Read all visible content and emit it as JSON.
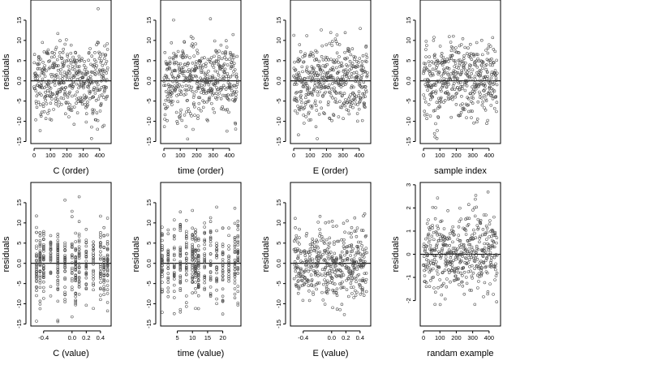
{
  "figure": {
    "panels": [
      {
        "xlabel": "C (order)",
        "ylabel": "residuals"
      },
      {
        "xlabel": "time (order)",
        "ylabel": "residuals"
      },
      {
        "xlabel": "E (order)",
        "ylabel": "residuals"
      },
      {
        "xlabel": "sample index",
        "ylabel": "residuals"
      },
      {
        "xlabel": "C (value)",
        "ylabel": "residuals"
      },
      {
        "xlabel": "time (value)",
        "ylabel": "residuals"
      },
      {
        "xlabel": "E (value)",
        "ylabel": "residuals"
      },
      {
        "xlabel": "randam example",
        "ylabel": "residuals"
      }
    ]
  },
  "chart_data": [
    {
      "type": "scatter",
      "xlabel": "C (order)",
      "ylabel": "residuals",
      "xlim": [
        -20,
        470
      ],
      "ylim": [
        -15.5,
        20
      ],
      "xticks": [
        0,
        100,
        200,
        300,
        400
      ],
      "xtick_labels": [
        "0",
        "100",
        "200",
        "300",
        "400"
      ],
      "yticks": [
        -15,
        -10,
        -5,
        0,
        5,
        10,
        15
      ],
      "ytick_labels": [
        "-15",
        "-10",
        "-5",
        "0.0",
        "5",
        "10",
        "15"
      ],
      "hline": 0,
      "n_points": 450,
      "x_pattern": "index",
      "y_range_observed": [
        -14.5,
        19
      ]
    },
    {
      "type": "scatter",
      "xlabel": "time (order)",
      "ylabel": "residuals",
      "xlim": [
        -20,
        470
      ],
      "ylim": [
        -15.5,
        20
      ],
      "xticks": [
        0,
        100,
        200,
        300,
        400
      ],
      "xtick_labels": [
        "0",
        "100",
        "200",
        "300",
        "400"
      ],
      "yticks": [
        -15,
        -10,
        -5,
        0,
        5,
        10,
        15
      ],
      "ytick_labels": [
        "-15",
        "-10",
        "-5",
        "0.0",
        "5",
        "10",
        "15"
      ],
      "hline": 0,
      "n_points": 450,
      "x_pattern": "index",
      "y_range_observed": [
        -14.5,
        19
      ]
    },
    {
      "type": "scatter",
      "xlabel": "E (order)",
      "ylabel": "residuals",
      "xlim": [
        -20,
        470
      ],
      "ylim": [
        -15.5,
        20
      ],
      "xticks": [
        0,
        100,
        200,
        300,
        400
      ],
      "xtick_labels": [
        "0",
        "100",
        "200",
        "300",
        "400"
      ],
      "yticks": [
        -15,
        -10,
        -5,
        0,
        5,
        10,
        15
      ],
      "ytick_labels": [
        "-15",
        "-10",
        "-5",
        "0.0",
        "5",
        "10",
        "15"
      ],
      "hline": 0,
      "n_points": 450,
      "x_pattern": "index",
      "y_range_observed": [
        -14.5,
        19
      ]
    },
    {
      "type": "scatter",
      "xlabel": "sample index",
      "ylabel": "residuals",
      "xlim": [
        -20,
        470
      ],
      "ylim": [
        -15.5,
        20
      ],
      "xticks": [
        0,
        100,
        200,
        300,
        400
      ],
      "xtick_labels": [
        "0",
        "100",
        "200",
        "300",
        "400"
      ],
      "yticks": [
        -15,
        -10,
        -5,
        0,
        5,
        10,
        15
      ],
      "ytick_labels": [
        "-15",
        "-10",
        "-5",
        "0.0",
        "5",
        "10",
        "15"
      ],
      "hline": 0,
      "n_points": 450,
      "x_pattern": "index",
      "y_range_observed": [
        -14.5,
        19
      ]
    },
    {
      "type": "scatter",
      "xlabel": "C (value)",
      "ylabel": "residuals",
      "xlim": [
        -0.58,
        0.55
      ],
      "ylim": [
        -15.5,
        20
      ],
      "xticks": [
        -0.4,
        0.0,
        0.2,
        0.4
      ],
      "xtick_labels": [
        "-0.4",
        "0.0",
        "0.2",
        "0.4"
      ],
      "yticks": [
        -15,
        -10,
        -5,
        0,
        5,
        10,
        15
      ],
      "ytick_labels": [
        "-15",
        "-10",
        "-5",
        "0.0",
        "5",
        "10",
        "15"
      ],
      "hline": 0,
      "n_points": 450,
      "x_pattern": "discrete",
      "x_levels": [
        -0.5,
        -0.45,
        -0.4,
        -0.3,
        -0.2,
        -0.1,
        0.0,
        0.05,
        0.1,
        0.2,
        0.3,
        0.4,
        0.45,
        0.5
      ],
      "y_range_observed": [
        -14.5,
        19
      ]
    },
    {
      "type": "scatter",
      "xlabel": "time (value)",
      "ylabel": "residuals",
      "xlim": [
        -0.5,
        26
      ],
      "ylim": [
        -15.5,
        20
      ],
      "xticks": [
        5,
        10,
        15,
        20
      ],
      "xtick_labels": [
        "5",
        "10",
        "15",
        "20"
      ],
      "yticks": [
        -15,
        -10,
        -5,
        0,
        5,
        10,
        15
      ],
      "ytick_labels": [
        "-15",
        "-10",
        "-5",
        "0.0",
        "5",
        "10",
        "15"
      ],
      "hline": 0,
      "n_points": 450,
      "x_pattern": "discrete",
      "x_levels": [
        0,
        2,
        4,
        6,
        8,
        10,
        11,
        12,
        14,
        16,
        18,
        20,
        22,
        24,
        25
      ],
      "y_range_observed": [
        -14.5,
        19
      ]
    },
    {
      "type": "scatter",
      "xlabel": "E (value)",
      "ylabel": "residuals",
      "xlim": [
        -0.58,
        0.55
      ],
      "ylim": [
        -15.5,
        20
      ],
      "xticks": [
        -0.4,
        0.0,
        0.2,
        0.4
      ],
      "xtick_labels": [
        "-0.4",
        "0.0",
        "0.2",
        "0.4"
      ],
      "yticks": [
        -15,
        -10,
        -5,
        0,
        5,
        10,
        15
      ],
      "ytick_labels": [
        "-15",
        "-10",
        "-5",
        "0.0",
        "5",
        "10",
        "15"
      ],
      "hline": 0,
      "n_points": 450,
      "x_pattern": "continuous",
      "y_range_observed": [
        -14.5,
        19
      ]
    },
    {
      "type": "scatter",
      "xlabel": "randam example",
      "ylabel": "residuals",
      "xlim": [
        -20,
        470
      ],
      "ylim": [
        -3.1,
        3.1
      ],
      "xticks": [
        0,
        100,
        200,
        300,
        400
      ],
      "xtick_labels": [
        "0",
        "100",
        "200",
        "300",
        "400"
      ],
      "yticks": [
        -2,
        -1,
        0,
        1,
        2,
        3
      ],
      "ytick_labels": [
        "-2",
        "-1",
        "0",
        "1",
        "2",
        "3"
      ],
      "hline": 0,
      "n_points": 450,
      "x_pattern": "index",
      "y_range_observed": [
        -2.9,
        2.9
      ]
    }
  ]
}
